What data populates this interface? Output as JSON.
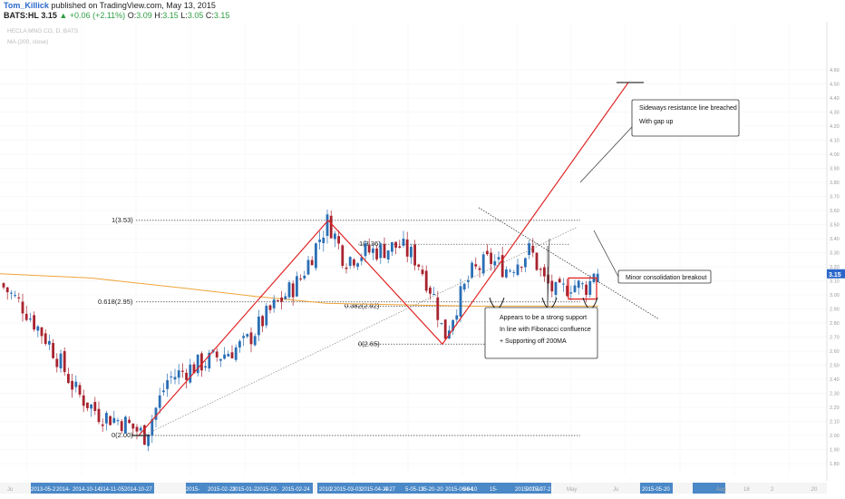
{
  "header": {
    "author": "Tom_Killick",
    "published_text": "published on TradingView.com, May 13, 2015",
    "symbol": "BATS:HL",
    "last": "3.15",
    "change": "▲ +0.06 (+2.11%)",
    "o_label": "O:",
    "o_value": "3.09",
    "h_label": "H:",
    "h_value": "3.15",
    "l_label": "L:",
    "l_value": "3.05",
    "c_label": "C:",
    "c_value": "3.15"
  },
  "watermark": {
    "line1": "HECLA MNG CO, D, BATS",
    "line2": "MA (200, close)"
  },
  "colors": {
    "up": "#2a6fb5",
    "down": "#a8232f",
    "ma": "#f0a53a",
    "red_line": "#e02424",
    "axis_bar": "#4a88c7",
    "last_price": "#2a67c9"
  },
  "chart_data": {
    "type": "candlestick",
    "series_name": "HL",
    "ylim": [
      1.8,
      4.65
    ],
    "fib_levels": [
      {
        "label": "1(3.53)",
        "value": 3.53
      },
      {
        "label": "1(3.36)",
        "value": 3.36
      },
      {
        "label": "0.618(2.95)",
        "value": 2.95
      },
      {
        "label": "0.382(2.92)",
        "value": 2.92
      },
      {
        "label": "0(2.65)",
        "value": 2.65
      },
      {
        "label": "0(2.00)",
        "value": 2.0
      }
    ],
    "last_price": "3.15",
    "price_ticks": [
      "4.60",
      "4.50",
      "4.40",
      "4.30",
      "4.20",
      "4.10",
      "4.00",
      "3.90",
      "3.80",
      "3.70",
      "3.60",
      "3.50",
      "3.40",
      "3.30",
      "3.20",
      "3.10",
      "3.00",
      "2.90",
      "2.80",
      "2.70",
      "2.60",
      "2.50",
      "2.40",
      "2.30",
      "2.20",
      "2.10",
      "2.00",
      "1.90",
      "1.80"
    ],
    "date_ticks": [
      "2013-05-2",
      "2014-",
      "2014-10-14",
      "314-11-05",
      "2014-10-27",
      "2015-",
      "2015-02-23",
      "2015-01-2",
      "2015-02-",
      "2015-02-24",
      "2010",
      "2",
      "2015-03-03",
      "2015-04-22",
      "4-27",
      "5-05-13",
      "35-20",
      "-20",
      "2015-06-04",
      "36-10",
      "15-",
      "2015-07-10",
      "2015-07-21",
      "2015-05-20"
    ],
    "date_ticks_plain": [
      "Ju",
      "May",
      "Ju",
      "Aug",
      "18",
      "2",
      ".20"
    ],
    "annotations": [
      {
        "lines": [
          "Sideways resistance line breached",
          "With gap up"
        ]
      },
      {
        "lines": [
          "Minor consolidation breakout"
        ]
      },
      {
        "lines": [
          "Appears to be a strong support",
          "In line with Fibonacci confluence",
          "+ Supporting off 200MA"
        ]
      }
    ]
  }
}
